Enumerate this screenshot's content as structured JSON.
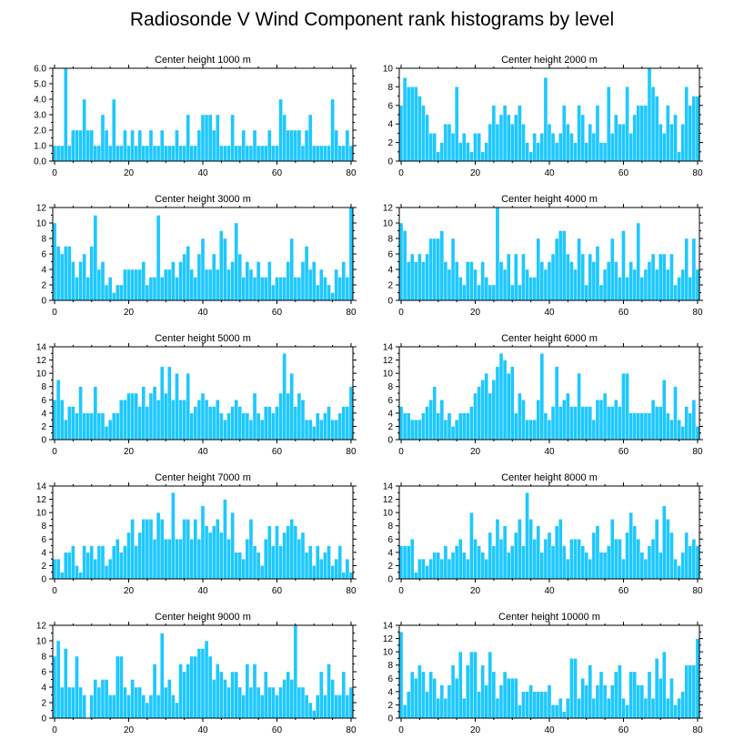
{
  "title": "Radiosonde V Wind Component rank histograms by level",
  "colors": {
    "bar": "#1ec8ff",
    "bar_edge": "#ffffff",
    "axis": "#000000"
  },
  "chart_data": [
    {
      "type": "bar",
      "title": "Center height 1000 m",
      "ylim": [
        0,
        6
      ],
      "yticks": [
        0,
        1,
        2,
        3,
        4,
        5,
        6
      ],
      "ytick_labels": [
        "0.0",
        "1.0",
        "2.0",
        "3.0",
        "4.0",
        "5.0",
        "6.0"
      ],
      "xlim": [
        -0.5,
        80.5
      ],
      "xticks": [
        0,
        20,
        40,
        60,
        80
      ],
      "xtick_labels": [
        "0",
        "20",
        "40",
        "60",
        "80"
      ],
      "values": [
        1,
        1,
        1,
        6,
        1,
        2,
        2,
        2,
        4,
        2,
        2,
        1,
        1,
        3,
        2,
        1,
        4,
        1,
        1,
        2,
        1,
        2,
        1,
        2,
        1,
        1,
        2,
        1,
        1,
        2,
        1,
        1,
        1,
        2,
        1,
        1,
        3,
        1,
        1,
        2,
        3,
        3,
        3,
        2,
        3,
        1,
        1,
        1,
        3,
        1,
        1,
        2,
        1,
        1,
        2,
        1,
        1,
        1,
        2,
        1,
        1,
        4,
        3,
        2,
        2,
        2,
        2,
        1,
        2,
        3,
        1,
        1,
        1,
        1,
        1,
        4,
        2,
        1,
        1,
        2,
        1
      ]
    },
    {
      "type": "bar",
      "title": "Center height 2000 m",
      "ylim": [
        0,
        10
      ],
      "yticks": [
        0,
        2,
        4,
        6,
        8,
        10
      ],
      "ytick_labels": [
        "0",
        "2",
        "4",
        "6",
        "8",
        "10"
      ],
      "xlim": [
        -0.5,
        80.5
      ],
      "xticks": [
        0,
        20,
        40,
        60,
        80
      ],
      "xtick_labels": [
        "0",
        "20",
        "40",
        "60",
        "80"
      ],
      "values": [
        6,
        9,
        8,
        8,
        8,
        7,
        6,
        5,
        3,
        3,
        1,
        2,
        4,
        4,
        3,
        8,
        2,
        3,
        2,
        1,
        3,
        3,
        1,
        2,
        4,
        6,
        4,
        5,
        6,
        5,
        4,
        5,
        6,
        4,
        2,
        1,
        3,
        2,
        3,
        9,
        4,
        3,
        2,
        3,
        6,
        4,
        3,
        2,
        6,
        5,
        2,
        4,
        3,
        6,
        2,
        2,
        8,
        3,
        5,
        4,
        4,
        8,
        3,
        5,
        6,
        6,
        6,
        10,
        8,
        7,
        4,
        3,
        6,
        4,
        5,
        1,
        4,
        8,
        6,
        7,
        7
      ]
    },
    {
      "type": "bar",
      "title": "Center height 3000 m",
      "ylim": [
        0,
        12
      ],
      "yticks": [
        0,
        2,
        4,
        6,
        8,
        10,
        12
      ],
      "ytick_labels": [
        "0",
        "2",
        "4",
        "6",
        "8",
        "10",
        "12"
      ],
      "xlim": [
        -0.5,
        80.5
      ],
      "xticks": [
        0,
        20,
        40,
        60,
        80
      ],
      "xtick_labels": [
        "0",
        "20",
        "40",
        "60",
        "80"
      ],
      "values": [
        10,
        7,
        6,
        7,
        7,
        5,
        3,
        5,
        6,
        3,
        7,
        11,
        4,
        5,
        2,
        3,
        1,
        2,
        2,
        4,
        4,
        4,
        4,
        4,
        5,
        2,
        3,
        3,
        11,
        3,
        4,
        4,
        5,
        3,
        5,
        6,
        7,
        4,
        3,
        6,
        8,
        4,
        4,
        6,
        4,
        9,
        8,
        4,
        5,
        10,
        6,
        3,
        5,
        4,
        3,
        5,
        3,
        3,
        5,
        2,
        3,
        3,
        3,
        5,
        8,
        3,
        3,
        5,
        7,
        4,
        5,
        2,
        4,
        3,
        2,
        1,
        4,
        3,
        5,
        3,
        12
      ]
    },
    {
      "type": "bar",
      "title": "Center height 4000 m",
      "ylim": [
        0,
        12
      ],
      "yticks": [
        0,
        2,
        4,
        6,
        8,
        10,
        12
      ],
      "ytick_labels": [
        "0",
        "2",
        "4",
        "6",
        "8",
        "10",
        "12"
      ],
      "xlim": [
        -0.5,
        80.5
      ],
      "xticks": [
        0,
        20,
        40,
        60,
        80
      ],
      "xtick_labels": [
        "0",
        "20",
        "40",
        "60",
        "80"
      ],
      "values": [
        10,
        9,
        5,
        6,
        5,
        6,
        5,
        6,
        8,
        8,
        8,
        9,
        5,
        4,
        8,
        5,
        3,
        2,
        5,
        5,
        4,
        2,
        5,
        3,
        2,
        2,
        12,
        5,
        4,
        6,
        2,
        6,
        2,
        6,
        4,
        3,
        3,
        8,
        5,
        4,
        5,
        6,
        8,
        9,
        9,
        6,
        5,
        4,
        8,
        6,
        2,
        6,
        5,
        7,
        2,
        4,
        5,
        8,
        5,
        3,
        9,
        3,
        5,
        4,
        10,
        3,
        4,
        5,
        6,
        4,
        6,
        6,
        4,
        6,
        2,
        3,
        4,
        8,
        3,
        8,
        4
      ]
    },
    {
      "type": "bar",
      "title": "Center height 5000 m",
      "ylim": [
        0,
        14
      ],
      "yticks": [
        0,
        2,
        4,
        6,
        8,
        10,
        12,
        14
      ],
      "ytick_labels": [
        "0",
        "2",
        "4",
        "6",
        "8",
        "10",
        "12",
        "14"
      ],
      "xlim": [
        -0.5,
        80.5
      ],
      "xticks": [
        0,
        20,
        40,
        60,
        80
      ],
      "xtick_labels": [
        "0",
        "20",
        "40",
        "60",
        "80"
      ],
      "values": [
        6,
        9,
        6,
        3,
        5,
        5,
        4,
        8,
        4,
        4,
        4,
        8,
        4,
        4,
        2,
        3,
        4,
        4,
        6,
        6,
        7,
        7,
        7,
        5,
        8,
        5,
        7,
        8,
        6,
        11,
        7,
        11,
        6,
        10,
        6,
        6,
        10,
        4,
        5,
        6,
        7,
        6,
        5,
        5,
        6,
        4,
        3,
        4,
        5,
        6,
        5,
        4,
        4,
        3,
        7,
        4,
        3,
        5,
        5,
        4,
        5,
        7,
        13,
        7,
        10,
        5,
        7,
        6,
        3,
        3,
        2,
        4,
        3,
        4,
        5,
        3,
        3,
        4,
        5,
        5,
        8
      ]
    },
    {
      "type": "bar",
      "title": "Center height 6000 m",
      "ylim": [
        0,
        14
      ],
      "yticks": [
        0,
        2,
        4,
        6,
        8,
        10,
        12,
        14
      ],
      "ytick_labels": [
        "0",
        "2",
        "4",
        "6",
        "8",
        "10",
        "12",
        "14"
      ],
      "xlim": [
        -0.5,
        80.5
      ],
      "xticks": [
        0,
        20,
        40,
        60,
        80
      ],
      "xtick_labels": [
        "0",
        "20",
        "40",
        "60",
        "80"
      ],
      "values": [
        5,
        4,
        4,
        3,
        3,
        3,
        4,
        5,
        6,
        8,
        4,
        6,
        3,
        4,
        2,
        3,
        4,
        4,
        4,
        5,
        7,
        8,
        9,
        10,
        7,
        9,
        11,
        13,
        12,
        10,
        11,
        4,
        7,
        6,
        3,
        3,
        3,
        6,
        13,
        4,
        3,
        5,
        11,
        5,
        6,
        7,
        5,
        5,
        10,
        5,
        5,
        5,
        3,
        6,
        6,
        7,
        5,
        5,
        6,
        5,
        10,
        10,
        4,
        4,
        4,
        4,
        4,
        4,
        6,
        5,
        5,
        9,
        4,
        3,
        8,
        3,
        2,
        5,
        4,
        6,
        2
      ]
    },
    {
      "type": "bar",
      "title": "Center height 7000 m",
      "ylim": [
        0,
        14
      ],
      "yticks": [
        0,
        2,
        4,
        6,
        8,
        10,
        12,
        14
      ],
      "ytick_labels": [
        "0",
        "2",
        "4",
        "6",
        "8",
        "10",
        "12",
        "14"
      ],
      "xlim": [
        -0.5,
        80.5
      ],
      "xticks": [
        0,
        20,
        40,
        60,
        80
      ],
      "xtick_labels": [
        "0",
        "20",
        "40",
        "60",
        "80"
      ],
      "values": [
        3,
        3,
        1,
        4,
        4,
        5,
        2,
        1,
        5,
        4,
        5,
        3,
        5,
        5,
        2,
        3,
        5,
        6,
        4,
        5,
        7,
        9,
        5,
        7,
        9,
        9,
        9,
        6,
        10,
        9,
        6,
        6,
        13,
        6,
        6,
        9,
        9,
        6,
        9,
        6,
        11,
        8,
        7,
        8,
        9,
        7,
        12,
        6,
        10,
        4,
        4,
        3,
        6,
        9,
        5,
        4,
        2,
        6,
        8,
        5,
        8,
        5,
        7,
        8,
        9,
        8,
        6,
        7,
        4,
        5,
        2,
        5,
        3,
        4,
        5,
        2,
        3,
        5,
        1,
        3,
        1
      ]
    },
    {
      "type": "bar",
      "title": "Center height 8000 m",
      "ylim": [
        0,
        14
      ],
      "yticks": [
        0,
        2,
        4,
        6,
        8,
        10,
        12,
        14
      ],
      "ytick_labels": [
        "0",
        "2",
        "4",
        "6",
        "8",
        "10",
        "12",
        "14"
      ],
      "xlim": [
        -0.5,
        80.5
      ],
      "xticks": [
        0,
        20,
        40,
        60,
        80
      ],
      "xtick_labels": [
        "0",
        "20",
        "40",
        "60",
        "80"
      ],
      "values": [
        5,
        5,
        5,
        6,
        1,
        3,
        3,
        2,
        3,
        4,
        4,
        3,
        5,
        3,
        4,
        5,
        6,
        4,
        3,
        10,
        6,
        5,
        4,
        3,
        7,
        5,
        9,
        6,
        8,
        4,
        5,
        7,
        9,
        5,
        13,
        9,
        6,
        8,
        4,
        6,
        7,
        5,
        8,
        9,
        5,
        3,
        6,
        6,
        6,
        5,
        4,
        3,
        7,
        8,
        4,
        4,
        5,
        9,
        6,
        6,
        3,
        7,
        10,
        8,
        6,
        4,
        3,
        5,
        6,
        9,
        4,
        11,
        9,
        7,
        3,
        2,
        4,
        7,
        5,
        6,
        5
      ]
    },
    {
      "type": "bar",
      "title": "Center height 9000 m",
      "ylim": [
        0,
        12
      ],
      "yticks": [
        0,
        2,
        4,
        6,
        8,
        10,
        12
      ],
      "ytick_labels": [
        "0",
        "2",
        "4",
        "6",
        "8",
        "10",
        "12"
      ],
      "xlim": [
        -0.5,
        80.5
      ],
      "xticks": [
        0,
        20,
        40,
        60,
        80
      ],
      "xtick_labels": [
        "0",
        "20",
        "40",
        "60",
        "80"
      ],
      "values": [
        8,
        10,
        4,
        9,
        4,
        4,
        8,
        4,
        3,
        0,
        3,
        5,
        4,
        5,
        5,
        3,
        3,
        8,
        8,
        4,
        3,
        5,
        4,
        4,
        3,
        2,
        3,
        7,
        3,
        11,
        4,
        5,
        3,
        2,
        7,
        6,
        7,
        8,
        8,
        9,
        9,
        10,
        8,
        5,
        7,
        6,
        5,
        4,
        6,
        6,
        4,
        3,
        7,
        4,
        7,
        4,
        3,
        6,
        4,
        4,
        3,
        4,
        5,
        6,
        5,
        12,
        4,
        4,
        3,
        2,
        1,
        3,
        6,
        3,
        7,
        5,
        3,
        3,
        6,
        3,
        4
      ]
    },
    {
      "type": "bar",
      "title": "Center height 10000 m",
      "ylim": [
        0,
        14
      ],
      "yticks": [
        0,
        2,
        4,
        6,
        8,
        10,
        12,
        14
      ],
      "ytick_labels": [
        "0",
        "2",
        "4",
        "6",
        "8",
        "10",
        "12",
        "14"
      ],
      "xlim": [
        -0.5,
        80.5
      ],
      "xticks": [
        0,
        20,
        40,
        60,
        80
      ],
      "xtick_labels": [
        "0",
        "20",
        "40",
        "60",
        "80"
      ],
      "values": [
        13,
        2,
        4,
        7,
        6,
        8,
        7,
        4,
        7,
        6,
        3,
        5,
        3,
        5,
        8,
        6,
        10,
        3,
        8,
        10,
        10,
        4,
        8,
        5,
        10,
        7,
        3,
        5,
        7,
        6,
        6,
        6,
        2,
        4,
        4,
        5,
        4,
        4,
        4,
        4,
        5,
        2,
        2,
        3,
        1,
        3,
        9,
        9,
        3,
        6,
        5,
        8,
        3,
        5,
        7,
        5,
        3,
        5,
        7,
        8,
        3,
        2,
        7,
        7,
        5,
        5,
        3,
        7,
        3,
        9,
        6,
        10,
        3,
        6,
        2,
        3,
        4,
        8,
        8,
        8,
        12
      ]
    }
  ]
}
